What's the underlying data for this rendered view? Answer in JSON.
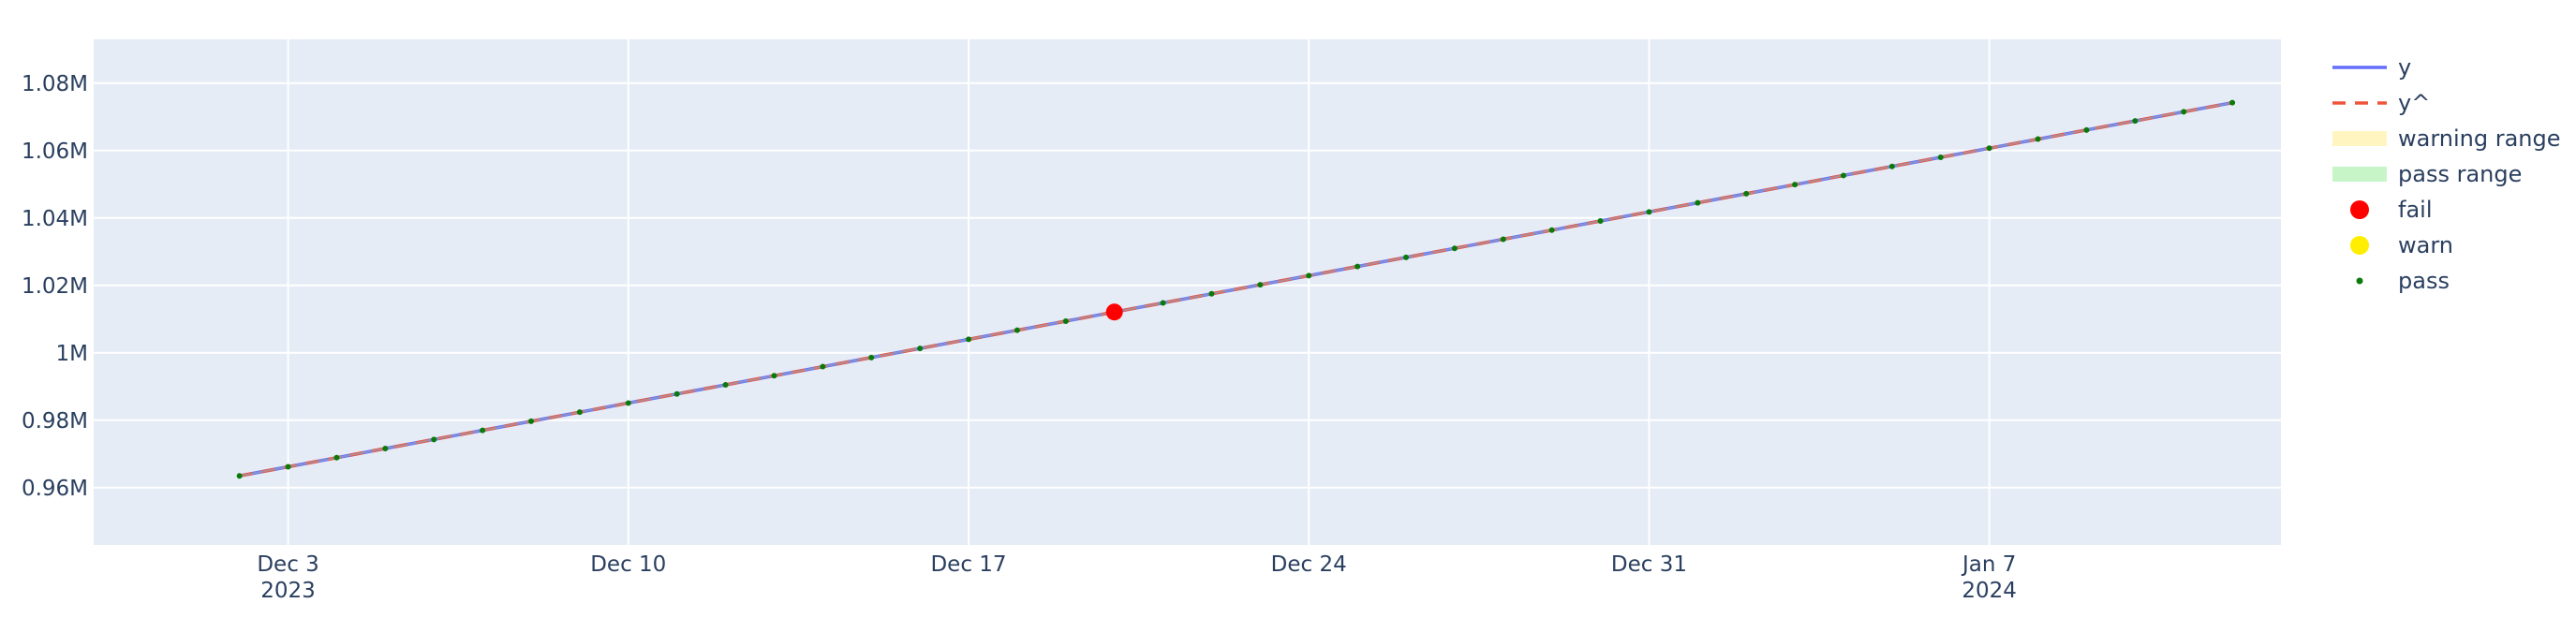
{
  "chart_data": {
    "type": "line",
    "title": "",
    "xlabel": "",
    "ylabel": "",
    "x_axis": {
      "type": "date",
      "range": [
        "2023-11-29T00:00:00",
        "2024-01-13T00:00:00"
      ],
      "ticks": [
        {
          "date": "2023-12-03",
          "label": "Dec 3",
          "sublabel": "2023"
        },
        {
          "date": "2023-12-10",
          "label": "Dec 10",
          "sublabel": ""
        },
        {
          "date": "2023-12-17",
          "label": "Dec 17",
          "sublabel": ""
        },
        {
          "date": "2023-12-24",
          "label": "Dec 24",
          "sublabel": ""
        },
        {
          "date": "2023-12-31",
          "label": "Dec 31",
          "sublabel": ""
        },
        {
          "date": "2024-01-07",
          "label": "Jan 7",
          "sublabel": "2024"
        }
      ]
    },
    "y_axis": {
      "range": [
        943000,
        1093000
      ],
      "ticks": [
        {
          "value": 960000,
          "label": "0.96M"
        },
        {
          "value": 980000,
          "label": "0.98M"
        },
        {
          "value": 1000000,
          "label": "1M"
        },
        {
          "value": 1020000,
          "label": "1.02M"
        },
        {
          "value": 1040000,
          "label": "1.04M"
        },
        {
          "value": 1060000,
          "label": "1.06M"
        },
        {
          "value": 1080000,
          "label": "1.08M"
        }
      ]
    },
    "grid": true,
    "legend_position": "right",
    "x": [
      "2023-12-02",
      "2023-12-03",
      "2023-12-04",
      "2023-12-05",
      "2023-12-06",
      "2023-12-07",
      "2023-12-08",
      "2023-12-09",
      "2023-12-10",
      "2023-12-11",
      "2023-12-12",
      "2023-12-13",
      "2023-12-14",
      "2023-12-15",
      "2023-12-16",
      "2023-12-17",
      "2023-12-18",
      "2023-12-19",
      "2023-12-20",
      "2023-12-21",
      "2023-12-22",
      "2023-12-23",
      "2023-12-24",
      "2023-12-25",
      "2023-12-26",
      "2023-12-27",
      "2023-12-28",
      "2023-12-29",
      "2023-12-30",
      "2023-12-31",
      "2024-01-01",
      "2024-01-02",
      "2024-01-03",
      "2024-01-04",
      "2024-01-05",
      "2024-01-06",
      "2024-01-07",
      "2024-01-08",
      "2024-01-09",
      "2024-01-10",
      "2024-01-11",
      "2024-01-12"
    ],
    "series": [
      {
        "name": "y",
        "style": "solid",
        "color": "#636efa",
        "values": [
          963500,
          966200,
          968900,
          971600,
          974300,
          977000,
          979700,
          982400,
          985100,
          987800,
          990500,
          993200,
          995900,
          998600,
          1001300,
          1004000,
          1006700,
          1009400,
          1012100,
          1014800,
          1017500,
          1020200,
          1022900,
          1025600,
          1028300,
          1031000,
          1033700,
          1036400,
          1039100,
          1041800,
          1044500,
          1047200,
          1049900,
          1052600,
          1055300,
          1058000,
          1060700,
          1063400,
          1066100,
          1068800,
          1071500,
          1074200
        ]
      },
      {
        "name": "y^",
        "style": "dash",
        "color": "#ef553b",
        "values": [
          963500,
          966200,
          968900,
          971600,
          974300,
          977000,
          979700,
          982400,
          985100,
          987800,
          990500,
          993200,
          995900,
          998600,
          1001300,
          1004000,
          1006700,
          1009400,
          1012100,
          1014800,
          1017500,
          1020200,
          1022900,
          1025600,
          1028300,
          1031000,
          1033700,
          1036400,
          1039100,
          1041800,
          1044500,
          1047200,
          1049900,
          1052600,
          1055300,
          1058000,
          1060700,
          1063400,
          1066100,
          1068800,
          1071500,
          1074200
        ]
      }
    ],
    "status": [
      "pass",
      "pass",
      "pass",
      "pass",
      "pass",
      "pass",
      "pass",
      "pass",
      "pass",
      "pass",
      "pass",
      "pass",
      "pass",
      "pass",
      "pass",
      "pass",
      "pass",
      "pass",
      "fail",
      "pass",
      "pass",
      "pass",
      "pass",
      "pass",
      "pass",
      "pass",
      "pass",
      "pass",
      "pass",
      "pass",
      "pass",
      "pass",
      "pass",
      "pass",
      "pass",
      "pass",
      "pass",
      "pass",
      "pass",
      "pass",
      "pass",
      "pass"
    ],
    "legend": [
      {
        "name": "y",
        "kind": "line",
        "color": "#636efa"
      },
      {
        "name": "y^",
        "kind": "dash",
        "color": "#ef553b"
      },
      {
        "name": "warning range",
        "kind": "band",
        "color": "#fff5c0"
      },
      {
        "name": "pass range",
        "kind": "band",
        "color": "#c8f5c8"
      },
      {
        "name": "fail",
        "kind": "marker",
        "color": "#ff0000"
      },
      {
        "name": "warn",
        "kind": "marker",
        "color": "#ffee00"
      },
      {
        "name": "pass",
        "kind": "smallmarker",
        "color": "#0a7a0a"
      }
    ],
    "colors": {
      "plot_bg": "#e5ecf6",
      "grid": "#ffffff",
      "overlay_line": "#9aa0b8",
      "fail": "#ff0000",
      "warn": "#ffee00",
      "pass": "#0a7a0a"
    }
  }
}
